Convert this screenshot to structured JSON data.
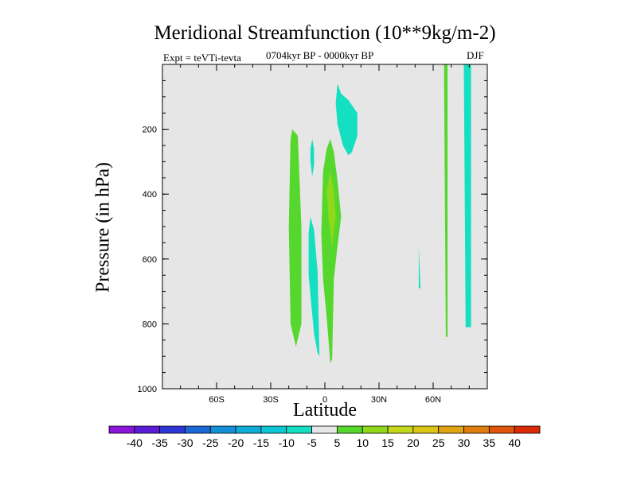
{
  "chart_data": {
    "type": "heatmap",
    "title": "Meridional Streamfunction (10**9kg/m-2)",
    "subtitle": "0704kyr BP - 0000kyr BP",
    "left_label": "Expt = teVTi-tevta",
    "right_label": "DJF",
    "xlabel": "Latitude",
    "ylabel": "Pressure (in hPa)",
    "xlim": [
      -90,
      90
    ],
    "ylim": [
      1000,
      0
    ],
    "x_ticks": [
      {
        "value": -60,
        "label": "60S"
      },
      {
        "value": -30,
        "label": "30S"
      },
      {
        "value": 0,
        "label": "0"
      },
      {
        "value": 30,
        "label": "30N"
      },
      {
        "value": 60,
        "label": "60N"
      }
    ],
    "y_ticks": [
      {
        "value": 200,
        "label": "200"
      },
      {
        "value": 400,
        "label": "400"
      },
      {
        "value": 600,
        "label": "600"
      },
      {
        "value": 800,
        "label": "800"
      },
      {
        "value": 1000,
        "label": "1000"
      }
    ],
    "background_color": "#e6e6e6",
    "colorbar": {
      "labels": [
        "-40",
        "-35",
        "-30",
        "-25",
        "-20",
        "-15",
        "-10",
        "-5",
        "5",
        "10",
        "15",
        "20",
        "25",
        "30",
        "35",
        "40"
      ],
      "colors": [
        "#8a15d8",
        "#5c1bd6",
        "#2f36d6",
        "#1c67d6",
        "#148fd8",
        "#10acd8",
        "#0fc7d4",
        "#14dfc1",
        "#e6e6e6",
        "#55d72e",
        "#8fd81a",
        "#c3d81a",
        "#dcc512",
        "#e0a510",
        "#e07d0e",
        "#e0550b",
        "#db2a08"
      ]
    },
    "regions": [
      {
        "name": "neg-upper-tropics",
        "level": -7.5,
        "color": "#14dfc1",
        "points": [
          [
            7,
            60
          ],
          [
            9,
            90
          ],
          [
            13,
            110
          ],
          [
            18,
            150
          ],
          [
            18,
            220
          ],
          [
            15,
            270
          ],
          [
            13,
            280
          ],
          [
            10,
            250
          ],
          [
            7,
            185
          ],
          [
            6,
            120
          ]
        ]
      },
      {
        "name": "neg-sh-upper",
        "level": -7.5,
        "color": "#14dfc1",
        "points": [
          [
            -7,
            230
          ],
          [
            -6,
            260
          ],
          [
            -6,
            310
          ],
          [
            -7,
            345
          ],
          [
            -8,
            300
          ],
          [
            -8,
            260
          ]
        ]
      },
      {
        "name": "neg-sh-lower",
        "level": -7.5,
        "color": "#14dfc1",
        "points": [
          [
            -8,
            470
          ],
          [
            -6,
            510
          ],
          [
            -4,
            640
          ],
          [
            -3,
            900
          ],
          [
            -4,
            890
          ],
          [
            -6,
            830
          ],
          [
            -9,
            650
          ],
          [
            -9,
            520
          ]
        ]
      },
      {
        "name": "neg-eq-column",
        "level": -7.5,
        "color": "#14dfc1",
        "points": [
          [
            2,
            690
          ],
          [
            4,
            780
          ],
          [
            4,
            900
          ],
          [
            3,
            870
          ],
          [
            1,
            780
          ]
        ]
      },
      {
        "name": "neg-50n-sliver",
        "level": -7.5,
        "color": "#14dfc1",
        "points": [
          [
            52,
            560
          ],
          [
            53,
            690
          ],
          [
            52,
            690
          ],
          [
            52,
            560
          ]
        ]
      },
      {
        "name": "neg-78n-column",
        "level": -7.5,
        "color": "#14dfc1",
        "points": [
          [
            77,
            0
          ],
          [
            81,
            0
          ],
          [
            81,
            810
          ],
          [
            78,
            810
          ]
        ]
      },
      {
        "name": "pos-20s-column",
        "level": 7.5,
        "color": "#55d72e",
        "points": [
          [
            -18,
            200
          ],
          [
            -15,
            220
          ],
          [
            -13,
            500
          ],
          [
            -13,
            800
          ],
          [
            -16,
            870
          ],
          [
            -19,
            800
          ],
          [
            -20,
            500
          ],
          [
            -19,
            230
          ]
        ]
      },
      {
        "name": "pos-eq-column",
        "level": 7.5,
        "color": "#55d72e",
        "points": [
          [
            3,
            230
          ],
          [
            5,
            270
          ],
          [
            7,
            360
          ],
          [
            9,
            470
          ],
          [
            7,
            560
          ],
          [
            5,
            660
          ],
          [
            4,
            910
          ],
          [
            3,
            920
          ],
          [
            1,
            780
          ],
          [
            -1,
            660
          ],
          [
            -2,
            520
          ],
          [
            -1,
            330
          ],
          [
            1,
            260
          ]
        ]
      },
      {
        "name": "pos-eq-core",
        "level": 12.5,
        "color": "#8fd81a",
        "points": [
          [
            3,
            330
          ],
          [
            5,
            390
          ],
          [
            6,
            470
          ],
          [
            4,
            560
          ],
          [
            2,
            470
          ],
          [
            1,
            390
          ]
        ]
      },
      {
        "name": "pos-66n-column",
        "level": 7.5,
        "color": "#55d72e",
        "points": [
          [
            66,
            0
          ],
          [
            68,
            0
          ],
          [
            68,
            840
          ],
          [
            67,
            840
          ]
        ]
      }
    ]
  }
}
